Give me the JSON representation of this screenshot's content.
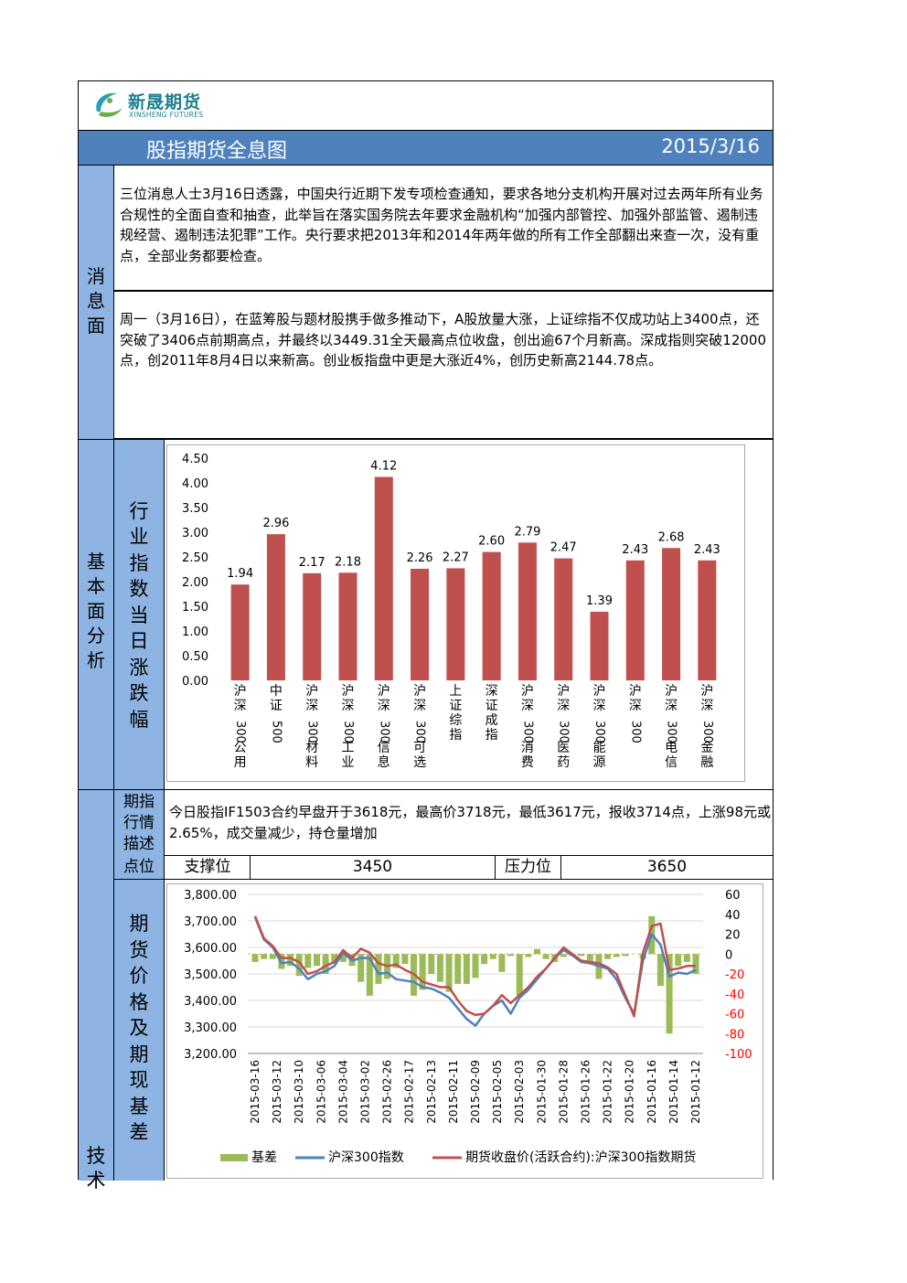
{
  "header": {
    "logo_cn": "新晟期货",
    "logo_en": "XINSHENG FUTURES",
    "title": "股指期货全息图",
    "date": "2015/3/16"
  },
  "sections": {
    "news_label": [
      "消",
      "息",
      "面"
    ],
    "fundamental_label": [
      "基",
      "本",
      "面",
      "分",
      "析"
    ],
    "industry_label": [
      "行",
      "业",
      "指",
      "数",
      "当",
      "日",
      "涨",
      "跌",
      "幅"
    ],
    "desc_label": [
      "期指",
      "行情",
      "描述"
    ],
    "level_label": "点位",
    "futures_label": [
      "期",
      "货",
      "价",
      "格",
      "及",
      "期",
      "现",
      "基",
      "差"
    ],
    "tech_label": "技术"
  },
  "news": [
    "三位消息人士3月16日透露，中国央行近期下发专项检查通知，要求各地分支机构开展对过去两年所有业务合规性的全面自查和抽查，此举旨在落实国务院去年要求金融机构“加强内部管控、加强外部监管、遏制违规经营、遏制违法犯罪”工作。央行要求把2013年和2014年两年做的所有工作全部翻出来查一次，没有重点，全部业务都要检查。",
    "周一（3月16日），在蓝筹股与题材股携手做多推动下，A股放量大涨，上证综指不仅成功站上3400点，还突破了3406点前期高点，并最终以3449.31全天最高点位收盘，创出逾67个月新高。深成指则突破12000点，创2011年8月4日以来新高。创业板指盘中更是大涨近4%，创历史新高2144.78点。"
  ],
  "market": {
    "description": "今日股指IF1503合约早盘开于3618元，最高价3718元，最低3617元，报收3714点，上涨98元或2.65%，成交量减少，持仓量增加",
    "support_label": "支撑位",
    "support_value": "3450",
    "resistance_label": "压力位",
    "resistance_value": "3650"
  },
  "colors": {
    "title_bar": "#4f81bd",
    "label_bg": "#8db4e2",
    "bar": "#c0504d",
    "basis": "#9bbb59",
    "index_line": "#4f81bd",
    "futures_line": "#c0504d",
    "right_axis": "#ff0000"
  },
  "chart_data": [
    {
      "type": "bar",
      "categories": [
        "沪深300公用",
        "中证500",
        "沪深300材料",
        "沪深300工业",
        "沪深300信息",
        "沪深300可选",
        "上证综指",
        "深证成指",
        "沪深300消费",
        "沪深300医药",
        "沪深300能源",
        "沪深300",
        "沪深300电信",
        "沪深300金融"
      ],
      "category_lines": [
        [
          "沪",
          "深",
          "300",
          "公",
          "用"
        ],
        [
          "中",
          "证",
          "500"
        ],
        [
          "沪",
          "深",
          "300",
          "材",
          "料"
        ],
        [
          "沪",
          "深",
          "300",
          "工",
          "业"
        ],
        [
          "沪",
          "深",
          "300",
          "信",
          "息"
        ],
        [
          "沪",
          "深",
          "300",
          "可",
          "选"
        ],
        [
          "上",
          "证",
          "综",
          "指"
        ],
        [
          "深",
          "证",
          "成",
          "指"
        ],
        [
          "沪",
          "深",
          "300",
          "消",
          "费"
        ],
        [
          "沪",
          "深",
          "300",
          "医",
          "药"
        ],
        [
          "沪",
          "深",
          "300",
          "能",
          "源"
        ],
        [
          "沪",
          "深",
          "300"
        ],
        [
          "沪",
          "深",
          "300",
          "电",
          "信"
        ],
        [
          "沪",
          "深",
          "300",
          "金",
          "融"
        ]
      ],
      "values": [
        1.94,
        2.96,
        2.17,
        2.18,
        4.12,
        2.26,
        2.27,
        2.6,
        2.79,
        2.47,
        1.39,
        2.43,
        2.68,
        2.43
      ],
      "ylim": [
        0,
        4.5
      ],
      "yticks": [
        "4.50",
        "4.00",
        "3.50",
        "3.00",
        "2.50",
        "2.00",
        "1.50",
        "1.00",
        "0.50",
        "0.00"
      ],
      "grid": false
    },
    {
      "type": "line",
      "x_tick_labels": [
        "2015-03-16",
        "2015-03-12",
        "2015-03-10",
        "2015-03-06",
        "2015-03-04",
        "2015-03-02",
        "2015-02-26",
        "2015-02-17",
        "2015-02-13",
        "2015-02-11",
        "2015-02-09",
        "2015-02-05",
        "2015-02-03",
        "2015-01-30",
        "2015-01-28",
        "2015-01-26",
        "2015-01-22",
        "2015-01-20",
        "2015-01-16",
        "2015-01-14",
        "2015-01-12"
      ],
      "left_ylim": [
        3200,
        3800
      ],
      "left_yticks": [
        "3,800.00",
        "3,700.00",
        "3,600.00",
        "3,500.00",
        "3,400.00",
        "3,300.00",
        "3,200.00"
      ],
      "right_ylim": [
        -100,
        60
      ],
      "right_yticks": [
        "60",
        "40",
        "20",
        "0",
        "-20",
        "-40",
        "-60",
        "-80",
        "-100"
      ],
      "legend_position": "bottom",
      "grid": true,
      "series": [
        {
          "name": "基差",
          "kind": "bar",
          "axis": "right",
          "values": [
            -8,
            -5,
            -5,
            -15,
            -12,
            -22,
            -14,
            -12,
            -20,
            -10,
            -8,
            -12,
            -28,
            -42,
            -30,
            -25,
            -14,
            -10,
            -42,
            -36,
            -20,
            -28,
            -38,
            -30,
            -30,
            -24,
            -10,
            -5,
            -18,
            -2,
            -42,
            -3,
            5,
            -5,
            -8,
            -3,
            -2,
            -2,
            -10,
            -25,
            -5,
            -3,
            -2,
            0,
            -5,
            38,
            -32,
            -80,
            -12,
            -8,
            -20
          ]
        },
        {
          "name": "沪深300指数",
          "kind": "line",
          "axis": "left",
          "values": [
            3714,
            3630,
            3600,
            3540,
            3545,
            3520,
            3480,
            3500,
            3510,
            3530,
            3580,
            3550,
            3560,
            3560,
            3500,
            3505,
            3480,
            3475,
            3470,
            3450,
            3445,
            3430,
            3410,
            3370,
            3330,
            3305,
            3350,
            3380,
            3400,
            3350,
            3410,
            3440,
            3480,
            3520,
            3560,
            3590,
            3570,
            3545,
            3540,
            3530,
            3520,
            3480,
            3410,
            3350,
            3550,
            3650,
            3610,
            3490,
            3505,
            3500,
            3515
          ]
        },
        {
          "name": "期货收盘价(活跃合约):沪深300指数期货",
          "kind": "line",
          "axis": "left",
          "values": [
            3718,
            3635,
            3605,
            3560,
            3560,
            3545,
            3500,
            3510,
            3530,
            3545,
            3590,
            3560,
            3595,
            3580,
            3540,
            3530,
            3535,
            3515,
            3500,
            3470,
            3460,
            3450,
            3450,
            3400,
            3360,
            3345,
            3350,
            3380,
            3420,
            3390,
            3420,
            3450,
            3490,
            3520,
            3560,
            3600,
            3575,
            3550,
            3545,
            3540,
            3525,
            3500,
            3420,
            3340,
            3580,
            3680,
            3690,
            3515,
            3520,
            3530,
            3530
          ]
        }
      ]
    }
  ]
}
